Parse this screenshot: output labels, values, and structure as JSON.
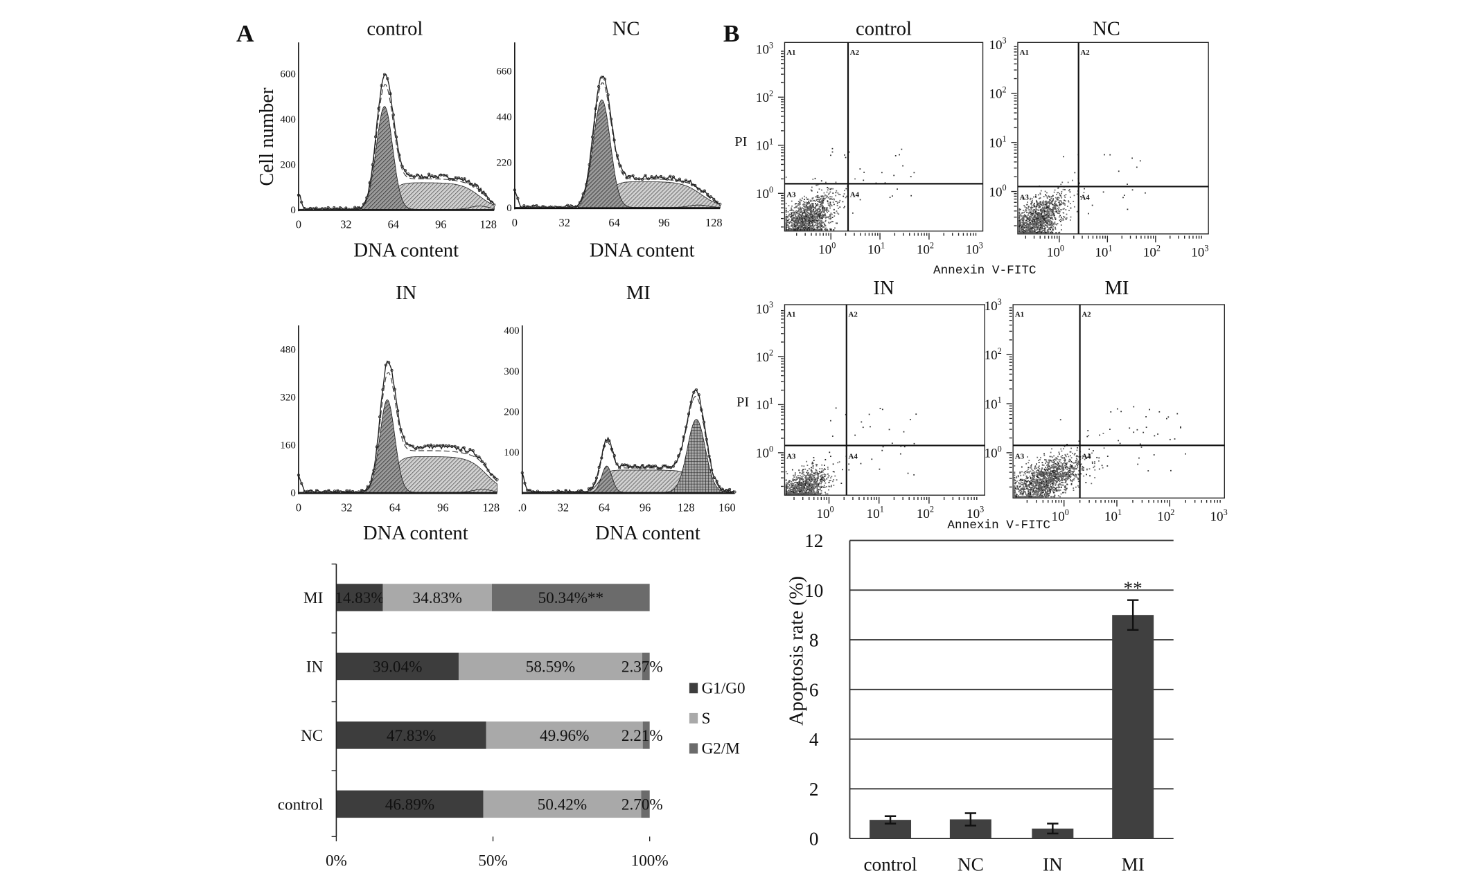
{
  "panel_labels": {
    "a": "A",
    "b": "B"
  },
  "chart_data": [
    {
      "id": "cell-cycle-histograms",
      "type": "area",
      "xlabel": "DNA content",
      "ylabel": "Cell number",
      "panels": [
        {
          "title": "control",
          "xticks": [
            "0",
            "32",
            "64",
            "96",
            "128"
          ],
          "xmax": 128,
          "yticks": [
            "0",
            "200",
            "400",
            "600"
          ],
          "ymax_tick": 600,
          "g1": {
            "mean": 58,
            "sd": 5.5,
            "height": 455
          },
          "s": {
            "from": 62,
            "to": 122,
            "height": 118
          },
          "g2": {
            "mean": 122,
            "sd": 6,
            "height": 15
          },
          "peak_total": 600
        },
        {
          "title": "NC",
          "xticks": [
            "0",
            "32",
            "64",
            "96",
            "128"
          ],
          "xmax": 128,
          "yticks": [
            "0",
            "220",
            "440",
            "660"
          ],
          "ymax_tick": 660,
          "g1": {
            "mean": 56,
            "sd": 5.5,
            "height": 520
          },
          "s": {
            "from": 60,
            "to": 120,
            "height": 125
          },
          "g2": {
            "mean": 118,
            "sd": 6,
            "height": 12
          },
          "peak_total": 640
        },
        {
          "title": "IN",
          "xticks": [
            "0",
            "32",
            "64",
            "96",
            "128"
          ],
          "xmax": 128,
          "yticks": [
            "0",
            "160",
            "320",
            "480"
          ],
          "ymax_tick": 480,
          "g1": {
            "mean": 59,
            "sd": 5,
            "height": 310
          },
          "s": {
            "from": 62,
            "to": 125,
            "height": 120
          },
          "g2": {
            "mean": 122,
            "sd": 6,
            "height": 10
          },
          "peak_total": 440
        },
        {
          "title": "MI",
          "xticks": [
            ".0",
            "32",
            "64",
            "96",
            "128",
            "160"
          ],
          "xmax": 160,
          "yticks": [
            "100",
            "200",
            "300",
            "400"
          ],
          "ymax_tick": 400,
          "g1": {
            "mean": 66,
            "sd": 4,
            "height": 65
          },
          "s": {
            "from": 60,
            "to": 140,
            "height": 55
          },
          "g2": {
            "mean": 136,
            "sd": 7,
            "height": 180
          },
          "peak_total": 250
        }
      ]
    },
    {
      "id": "cell-cycle-distribution",
      "type": "bar",
      "orientation": "horizontal-stacked",
      "categories": [
        "MI",
        "IN",
        "NC",
        "control"
      ],
      "series": [
        {
          "name": "G1/G0",
          "color": "#3d3d3d",
          "values": [
            14.83,
            39.04,
            47.83,
            46.89
          ],
          "labels": [
            "14.83%",
            "39.04%",
            "47.83%",
            "46.89%"
          ]
        },
        {
          "name": "S",
          "color": "#a9a9a9",
          "values": [
            34.83,
            58.59,
            49.96,
            50.42
          ],
          "labels": [
            "34.83%",
            "58.59%",
            "49.96%",
            "50.42%"
          ]
        },
        {
          "name": "G2/M",
          "color": "#6b6b6b",
          "values": [
            50.34,
            2.37,
            2.21,
            2.7
          ],
          "labels": [
            "50.34%**",
            "2.37%",
            "2.21%",
            "2.70%"
          ]
        }
      ],
      "xticks": [
        "0%",
        "50%",
        "100%"
      ],
      "xlim": [
        0,
        100
      ],
      "legend": "right"
    },
    {
      "id": "annexin-pi-flow",
      "type": "scatter",
      "xlabel": "Annexin V-FITC",
      "ylabel": "PI",
      "tick_base": "10",
      "tick_exponents": [
        "0",
        "1",
        "2",
        "3"
      ],
      "quadrants": [
        "A1",
        "A2",
        "A3",
        "A4"
      ],
      "panels": [
        {
          "title": "control",
          "gate_log": [
            0.35,
            0.2
          ],
          "cluster_log": [
            -0.55,
            -0.6
          ],
          "spread_log": [
            0.3,
            0.28
          ],
          "n": 1600,
          "outliers": 30
        },
        {
          "title": "NC",
          "gate_log": [
            0.4,
            0.1
          ],
          "cluster_log": [
            -0.5,
            -0.6
          ],
          "spread_log": [
            0.3,
            0.28
          ],
          "n": 1400,
          "outliers": 25
        },
        {
          "title": "IN",
          "gate_log": [
            0.35,
            0.15
          ],
          "cluster_log": [
            -0.55,
            -0.75
          ],
          "spread_log": [
            0.28,
            0.22
          ],
          "n": 1100,
          "outliers": 30
        },
        {
          "title": "MI",
          "gate_log": [
            0.3,
            0.15
          ],
          "cluster_log": [
            -0.35,
            -0.55
          ],
          "spread_log": [
            0.35,
            0.25
          ],
          "n": 1500,
          "outliers": 45
        }
      ]
    },
    {
      "id": "apoptosis-rate",
      "type": "bar",
      "categories": [
        "control",
        "NC",
        "IN",
        "MI"
      ],
      "values": [
        0.75,
        0.77,
        0.4,
        9.0
      ],
      "errors": [
        0.15,
        0.25,
        0.2,
        0.6
      ],
      "annotations": [
        "",
        "",
        "",
        "**"
      ],
      "ylabel": "Apoptosis rate (%)",
      "yticks": [
        "0",
        "2",
        "4",
        "6",
        "8",
        "10",
        "12"
      ],
      "ylim": [
        0,
        12
      ],
      "grid": true,
      "color": "#404040"
    }
  ]
}
